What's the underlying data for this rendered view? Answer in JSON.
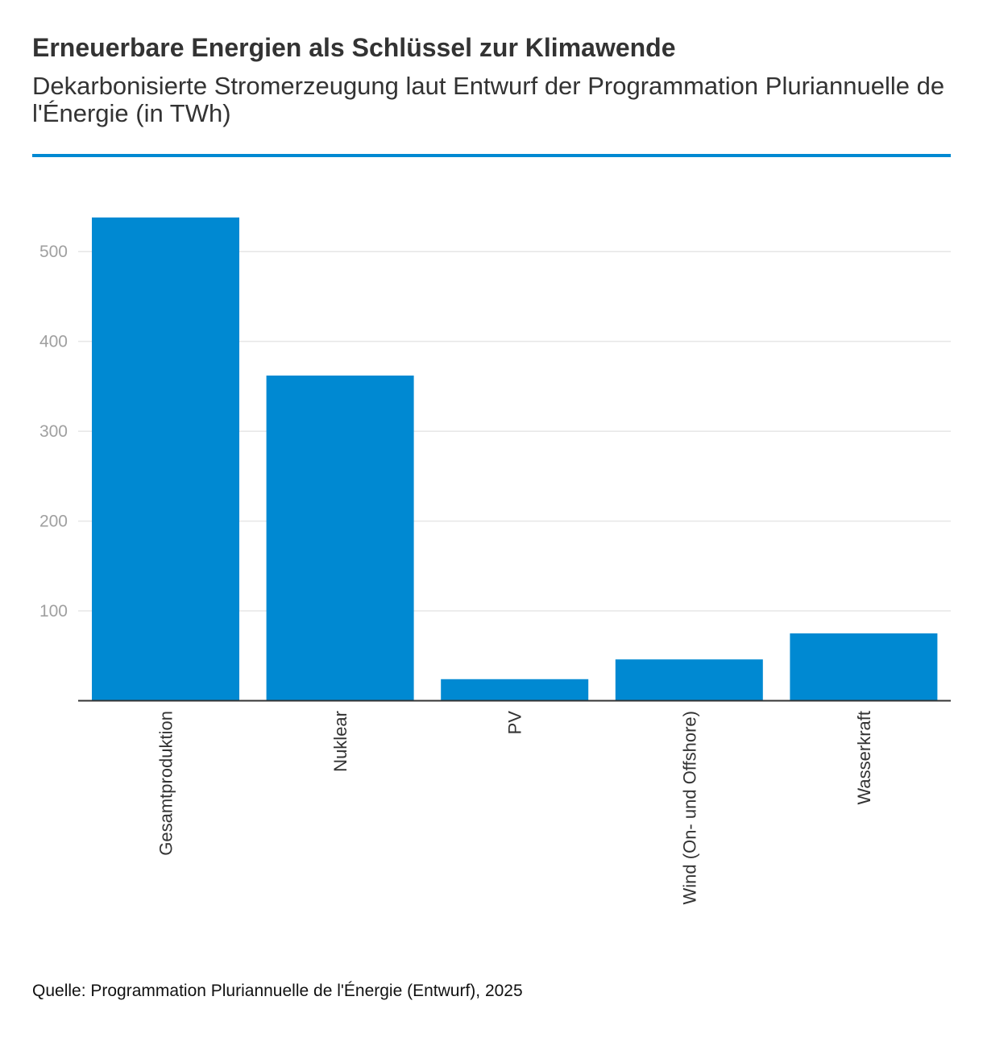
{
  "header": {
    "title": "Erneuerbare Energien als Schlüssel zur Klimawende",
    "subtitle": "Dekarbonisierte Stromerzeugung laut Entwurf der Programmation Pluriannuelle de l'Énergie (in TWh)"
  },
  "footer": {
    "source": "Quelle: Programmation Pluriannuelle de l'Énergie (Entwurf), 2025"
  },
  "colors": {
    "accent": "#0089d2",
    "bar": "#0089d2",
    "grid": "#e6e6e6",
    "axis": "#333333"
  },
  "chart_data": {
    "type": "bar",
    "categories": [
      "Gesamtproduktion",
      "Nuklear",
      "PV",
      "Wind (On- und Offshore)",
      "Wasserkraft"
    ],
    "values": [
      538,
      362,
      24,
      46,
      75
    ],
    "xlabel": "",
    "ylabel": "",
    "ylim": [
      0,
      550
    ],
    "yticks": [
      100,
      200,
      300,
      400,
      500
    ],
    "grid": true,
    "legend": "none"
  }
}
